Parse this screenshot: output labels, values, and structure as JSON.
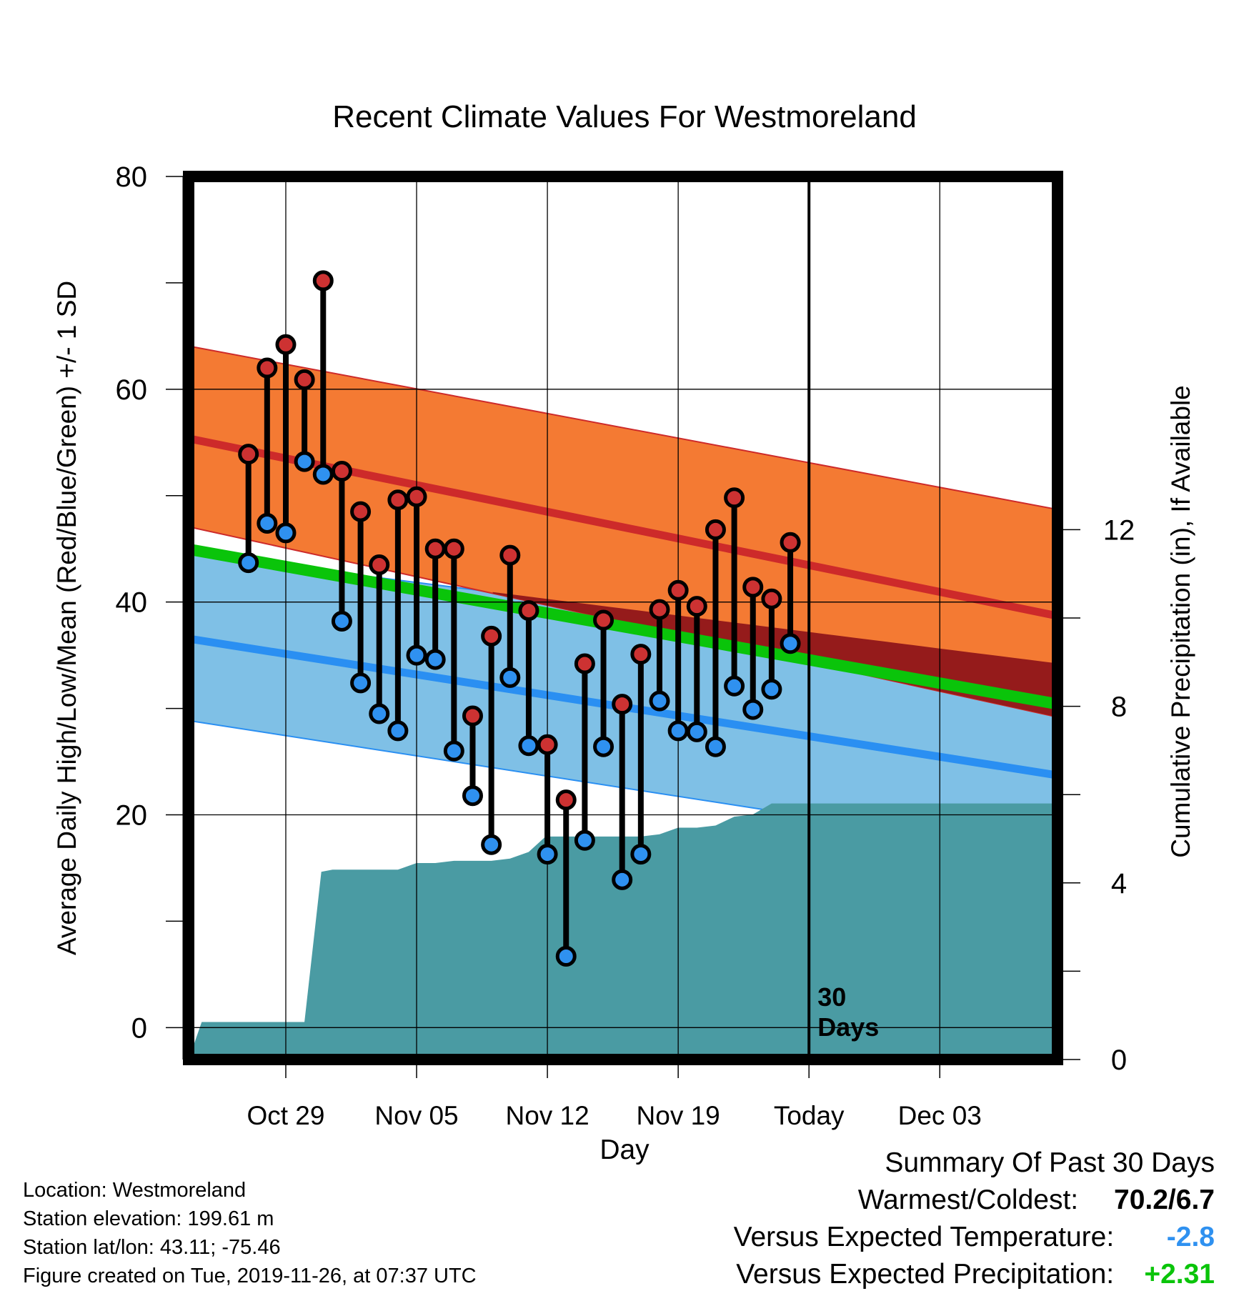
{
  "chart_data": {
    "type": "line",
    "title": "Recent Climate Values For Westmoreland",
    "xlabel": "Day",
    "ylabel": "Average Daily High/Low/Mean (Red/Blue/Green) +/- 1 SD",
    "y2label": "Cumulative Precipitation (in), If Available",
    "x_range_days": [
      -33.2,
      13.3
    ],
    "x_ticks": [
      {
        "day": -28,
        "label": "Oct 29"
      },
      {
        "day": -21,
        "label": "Nov 05"
      },
      {
        "day": -14,
        "label": "Nov 12"
      },
      {
        "day": -7,
        "label": "Nov 19"
      },
      {
        "day": 0,
        "label": "Today"
      },
      {
        "day": 7,
        "label": "Dec 03"
      }
    ],
    "ylim": [
      -3,
      80
    ],
    "y_ticks": [
      0,
      20,
      40,
      60,
      80
    ],
    "y2lim": [
      0,
      20
    ],
    "y2_ticks": [
      0,
      4,
      8,
      12
    ],
    "grid": true,
    "today_label": "30\nDays",
    "expected_high": {
      "days": [
        -33,
        13
      ],
      "mean": [
        55.3,
        38.8
      ],
      "sd_upper": [
        64.0,
        48.8
      ],
      "sd_lower": [
        47.0,
        29.3
      ]
    },
    "expected_low": {
      "days": [
        -33,
        13
      ],
      "mean": [
        36.5,
        23.8
      ],
      "sd_upper": [
        44.5,
        34.3
      ],
      "sd_lower": [
        28.8,
        16.3
      ]
    },
    "expected_mean": {
      "days": [
        -33,
        13
      ],
      "values": [
        44.9,
        30.5
      ]
    },
    "observations": {
      "days": [
        -30,
        -29,
        -28,
        -27,
        -26,
        -25,
        -24,
        -23,
        -22,
        -21,
        -20,
        -19,
        -18,
        -17,
        -16,
        -15,
        -14,
        -13,
        -12,
        -11,
        -10,
        -9,
        -8,
        -7,
        -6,
        -5,
        -4,
        -3,
        -2,
        -1
      ],
      "highs": [
        53.9,
        62.0,
        64.2,
        60.9,
        70.2,
        52.3,
        48.5,
        43.5,
        49.6,
        49.9,
        45.0,
        45.0,
        29.3,
        36.8,
        44.4,
        39.2,
        26.6,
        21.4,
        34.2,
        38.3,
        30.4,
        35.1,
        39.3,
        41.1,
        39.6,
        46.8,
        49.8,
        41.4,
        40.3,
        45.6
      ],
      "lows": [
        43.7,
        47.4,
        46.5,
        53.2,
        52.0,
        38.2,
        32.4,
        29.5,
        27.9,
        35.0,
        34.6,
        26.0,
        21.8,
        17.2,
        32.9,
        26.5,
        16.3,
        6.7,
        17.6,
        26.4,
        13.9,
        16.3,
        30.7,
        27.9,
        27.8,
        26.4,
        32.1,
        29.9,
        31.8,
        36.1
      ]
    },
    "precip_cumulative": {
      "days": [
        -33.2,
        -32.5,
        -30,
        -29,
        -28,
        -27,
        -26.1,
        -25.5,
        -24,
        -23,
        -22,
        -21,
        -20,
        -19,
        -18,
        -17,
        -16,
        -15,
        -14.1,
        -14,
        -13,
        -12,
        -11,
        -10,
        -9,
        -8,
        -7,
        -6,
        -5,
        -4,
        -3,
        -2,
        -1,
        13.3
      ],
      "values": [
        0.0,
        0.85,
        0.85,
        0.85,
        0.85,
        0.85,
        4.25,
        4.3,
        4.3,
        4.3,
        4.3,
        4.45,
        4.45,
        4.5,
        4.5,
        4.5,
        4.55,
        4.7,
        5.05,
        5.05,
        5.05,
        5.05,
        5.05,
        5.05,
        5.05,
        5.1,
        5.25,
        5.25,
        5.3,
        5.5,
        5.55,
        5.8,
        5.8,
        5.8
      ]
    },
    "colors": {
      "high_band": "#f47a33",
      "high_mean": "#cd2a2a",
      "low_band": "#7fc0e6",
      "low_mean": "#2a8ff2",
      "mean_line": "#0ac40a",
      "overlap": "#951b1b",
      "precip": "#4a9ba3",
      "high_marker": "#cd3232",
      "low_marker": "#2f91f0"
    }
  },
  "station_info": [
    "Location: Westmoreland",
    "Station elevation: 199.61 m",
    "Station lat/lon: 43.11; -75.46",
    "Figure created on Tue, 2019-11-26, at 07:37 UTC"
  ],
  "summary": {
    "heading": "Summary Of Past 30 Days",
    "warmest_coldest_label": "Warmest/Coldest:",
    "warmest_coldest_value": "70.2/6.7",
    "temp_label": "Versus Expected Temperature:",
    "temp_value": "-2.8",
    "temp_color": "#2f91f0",
    "precip_label": "Versus Expected Precipitation:",
    "precip_value": "+2.31",
    "precip_color": "#0ac40a"
  }
}
